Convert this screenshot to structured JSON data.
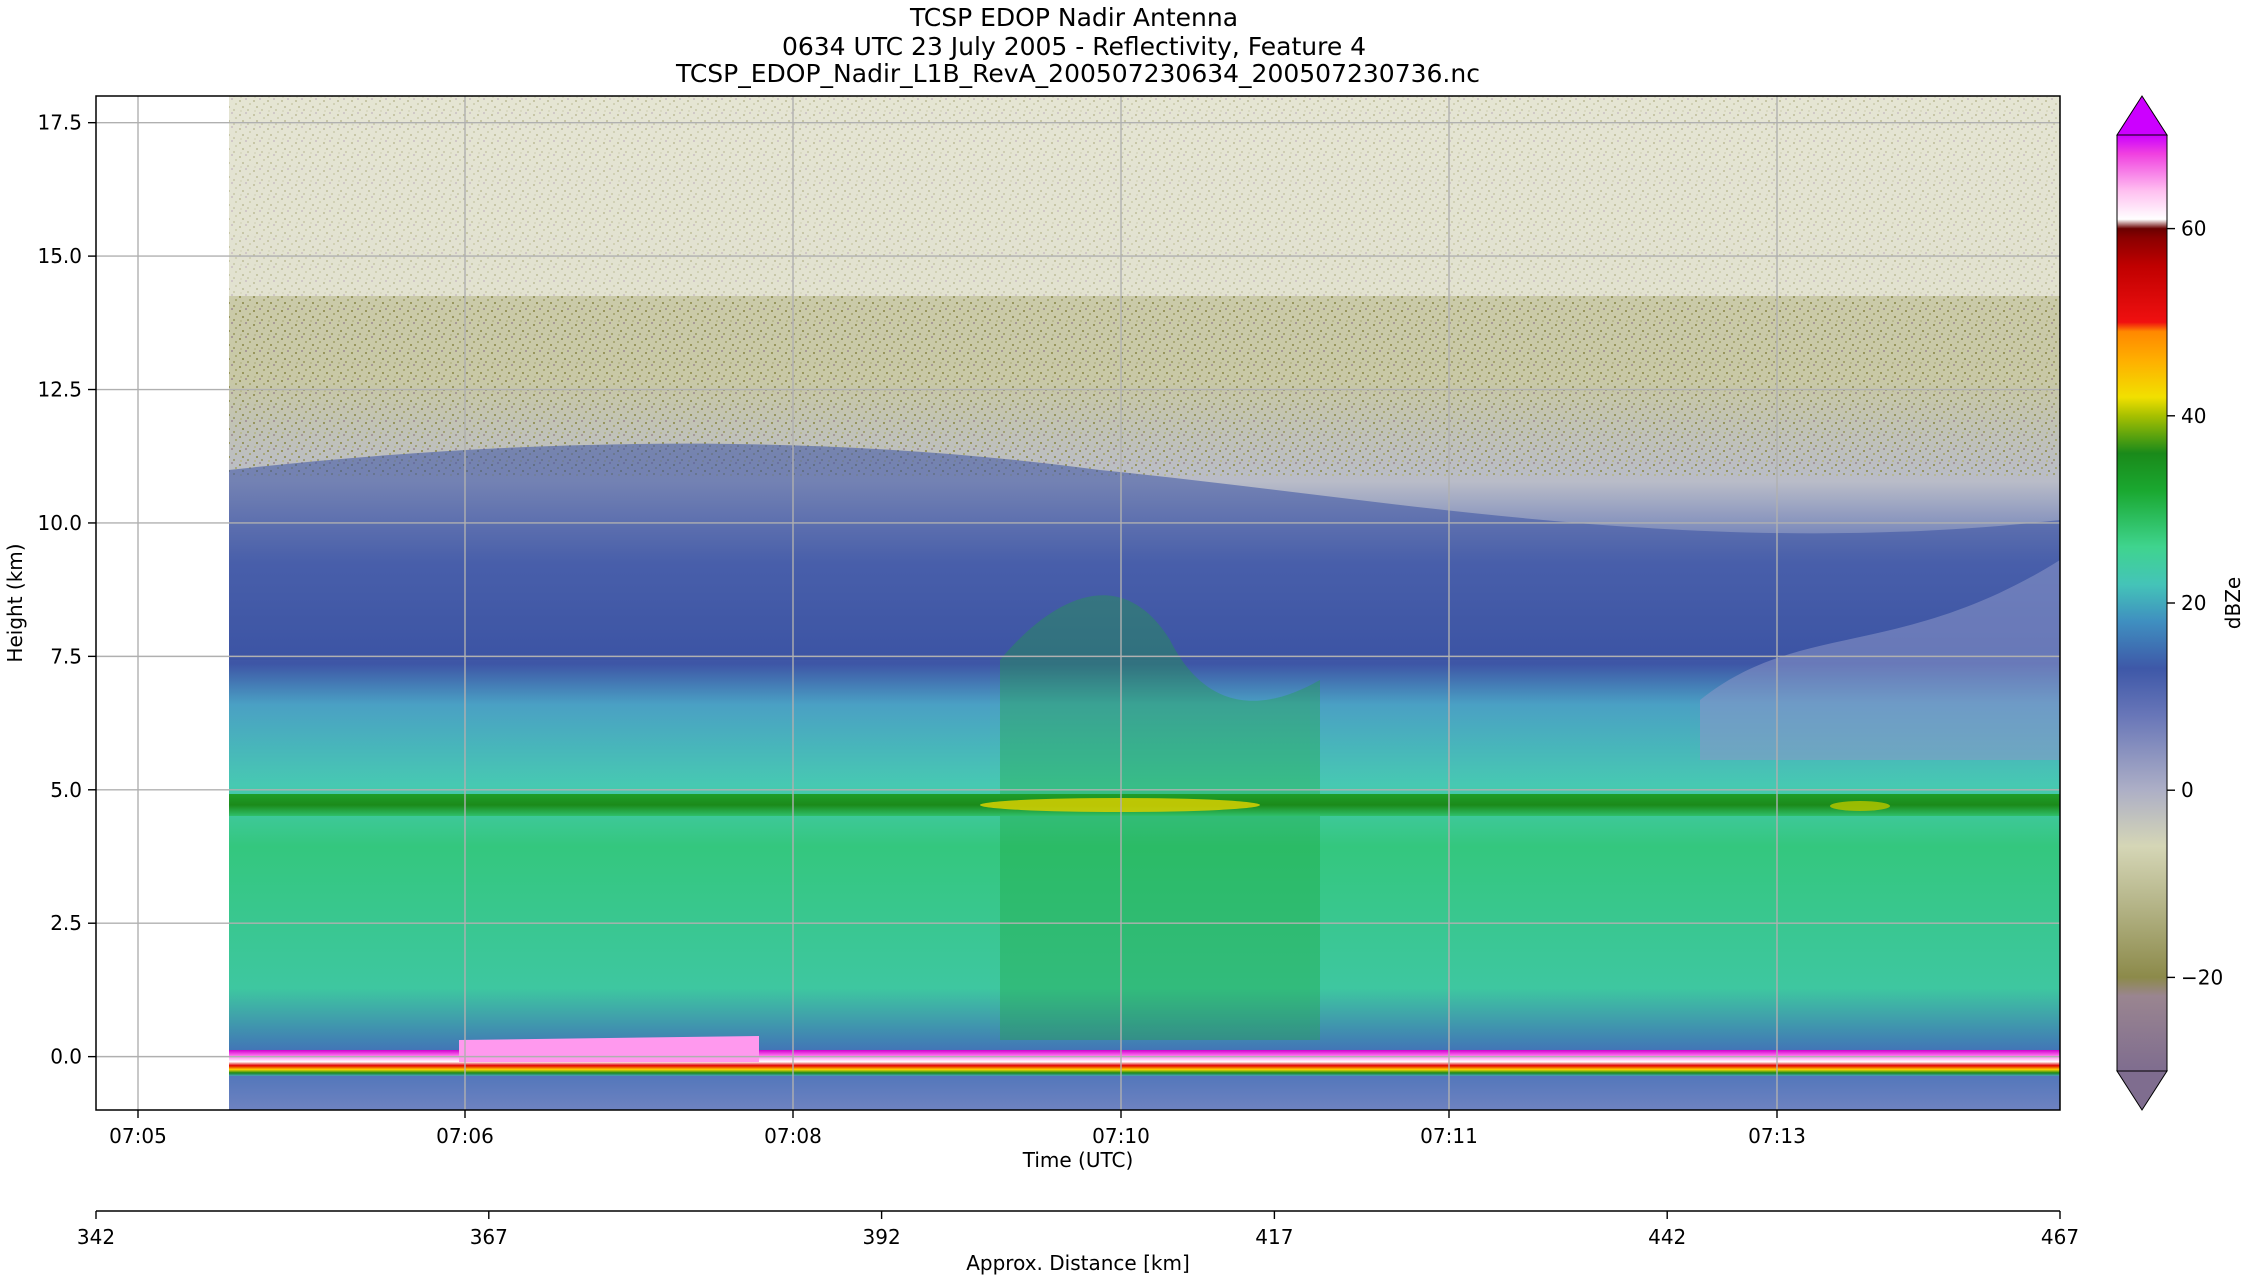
{
  "title_lines": [
    "TCSP EDOP Nadir Antenna",
    "0634 UTC 23 July 2005 - Reflectivity, Feature 4",
    "TCSP_EDOP_Nadir_L1B_RevA_200507230634_200507230736.nc"
  ],
  "chart_data": {
    "type": "heatmap",
    "title": "TCSP EDOP Nadir Antenna",
    "xlabel": "Time (UTC)",
    "ylabel": "Height (km)",
    "x_ticks": [
      "07:05",
      "07:06",
      "07:08",
      "07:10",
      "07:11",
      "07:13"
    ],
    "y_ticks": [
      "0.0",
      "2.5",
      "5.0",
      "7.5",
      "10.0",
      "12.5",
      "15.0",
      "17.5"
    ],
    "ylim": [
      -1.0,
      18.0
    ],
    "grid": true,
    "secondary_xlabel": "Approx. Distance [km]",
    "secondary_x_ticks": [
      "342",
      "367",
      "392",
      "417",
      "442",
      "467"
    ],
    "secondary_xlim": [
      342,
      467
    ],
    "colorbar": {
      "label": "dBZe",
      "ticks": [
        "60",
        "40",
        "20",
        "0",
        "−20"
      ],
      "range": [
        -30,
        70
      ],
      "extend": "both"
    },
    "features": {
      "melting_layer_height_km": 4.7,
      "surface_height_km": 0.0,
      "cloud_top_km": [
        10.5,
        8.0
      ],
      "max_dbze_melting_layer": 40
    }
  }
}
